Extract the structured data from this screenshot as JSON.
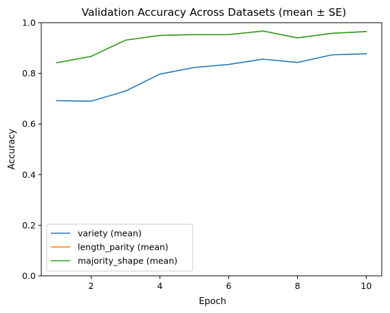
{
  "chart_data": {
    "type": "line",
    "title": "Validation Accuracy Across Datasets (mean ± SE)",
    "xlabel": "Epoch",
    "ylabel": "Accuracy",
    "xlim": [
      0.55,
      10.45
    ],
    "ylim": [
      0.0,
      1.0
    ],
    "xticks": [
      2,
      4,
      6,
      8,
      10
    ],
    "yticks": [
      0.0,
      0.2,
      0.4,
      0.6,
      0.8,
      1.0
    ],
    "grid": false,
    "legend_position": "lower-left",
    "x": [
      1,
      2,
      3,
      4,
      5,
      6,
      7,
      8,
      9,
      10
    ],
    "series": [
      {
        "name": "variety (mean)",
        "color": "#1f77b4",
        "values": [
          0.692,
          0.69,
          0.73,
          0.797,
          0.823,
          0.835,
          0.856,
          0.843,
          0.873,
          0.877
        ]
      },
      {
        "name": "length_parity (mean)",
        "color": "#ff7f0e",
        "values": [
          0.842,
          0.867,
          0.931,
          0.95,
          0.953,
          0.953,
          0.967,
          0.94,
          0.958,
          0.965
        ]
      },
      {
        "name": "majority_shape (mean)",
        "color": "#2ca02c",
        "values": [
          0.842,
          0.867,
          0.931,
          0.95,
          0.953,
          0.953,
          0.967,
          0.94,
          0.958,
          0.965
        ]
      }
    ]
  }
}
